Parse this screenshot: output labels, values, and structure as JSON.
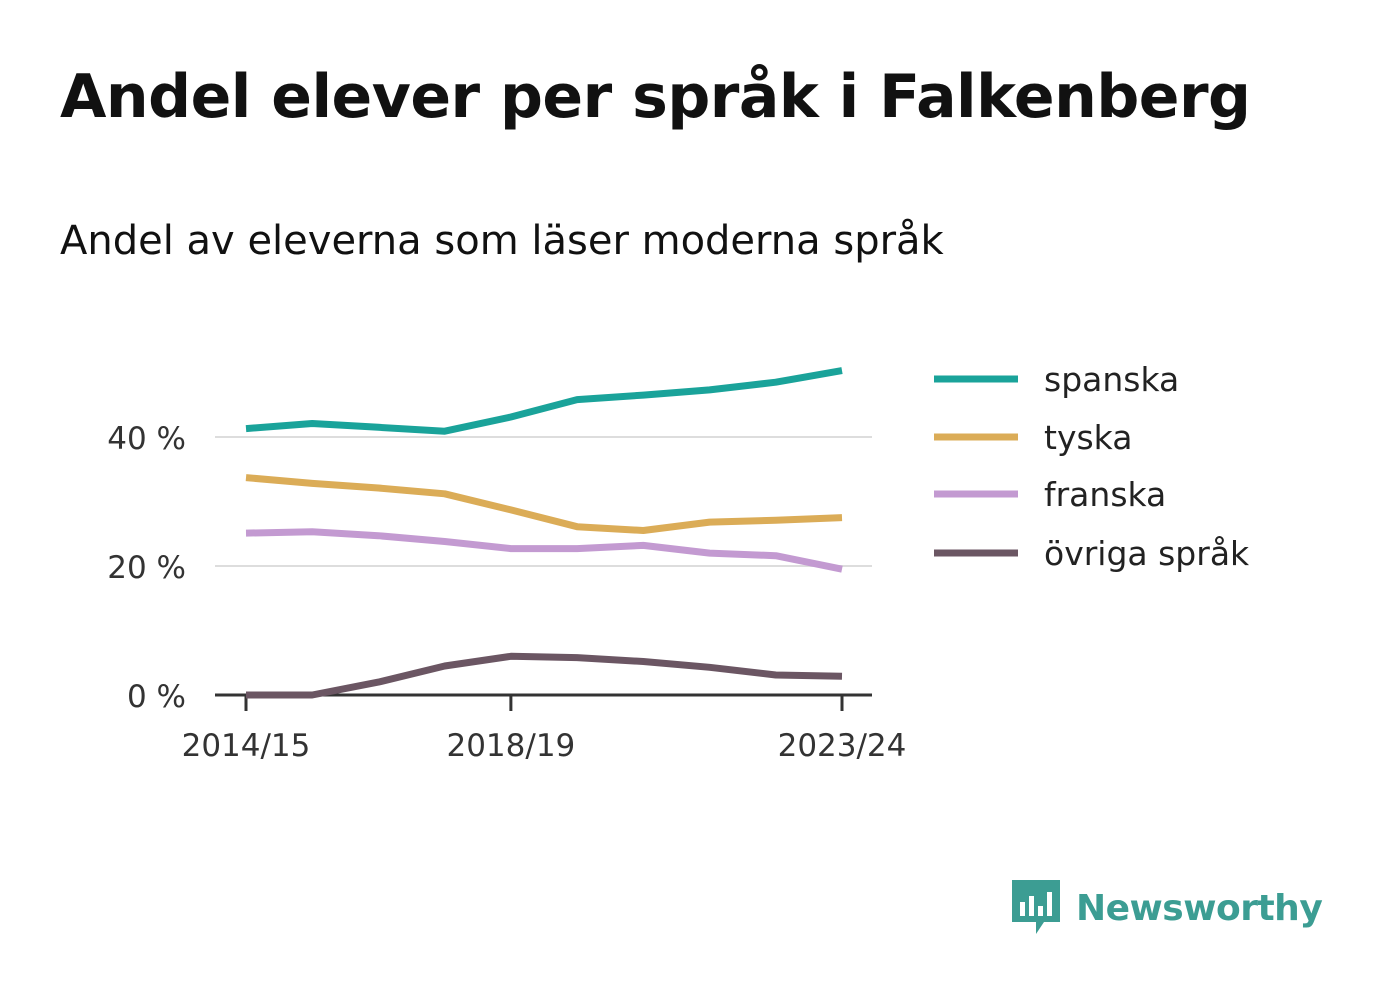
{
  "title": "Andel elever per språk i Falkenberg",
  "subtitle": "Andel av eleverna som läser moderna språk",
  "brand": {
    "name": "Newsworthy",
    "color": "#3c9d93"
  },
  "chart_data": {
    "type": "line",
    "x": [
      "2014/15",
      "2015/16",
      "2016/17",
      "2017/18",
      "2018/19",
      "2019/20",
      "2020/21",
      "2021/22",
      "2022/23",
      "2023/24"
    ],
    "x_tick_labels": [
      "2014/15",
      "2018/19",
      "2023/24"
    ],
    "y_ticks": [
      0,
      20,
      40
    ],
    "y_tick_labels": [
      "0 %",
      "20 %",
      "40 %"
    ],
    "ylim": [
      0,
      52
    ],
    "grid": true,
    "legend_position": "right",
    "series": [
      {
        "name": "spanska",
        "color": "#1aa39a",
        "values": [
          41.3,
          42.1,
          41.5,
          40.9,
          43.1,
          45.8,
          46.5,
          47.3,
          48.5,
          50.3
        ]
      },
      {
        "name": "tyska",
        "color": "#dbac57",
        "values": [
          33.7,
          32.8,
          32.1,
          31.2,
          28.7,
          26.1,
          25.5,
          26.8,
          27.1,
          27.5
        ]
      },
      {
        "name": "franska",
        "color": "#c39ad1",
        "values": [
          25.1,
          25.3,
          24.7,
          23.8,
          22.7,
          22.7,
          23.2,
          22.0,
          21.6,
          19.5
        ]
      },
      {
        "name": "övriga språk",
        "color": "#6b5663",
        "values": [
          0.0,
          0.0,
          2.0,
          4.5,
          6.0,
          5.8,
          5.2,
          4.3,
          3.1,
          2.9
        ]
      }
    ]
  }
}
